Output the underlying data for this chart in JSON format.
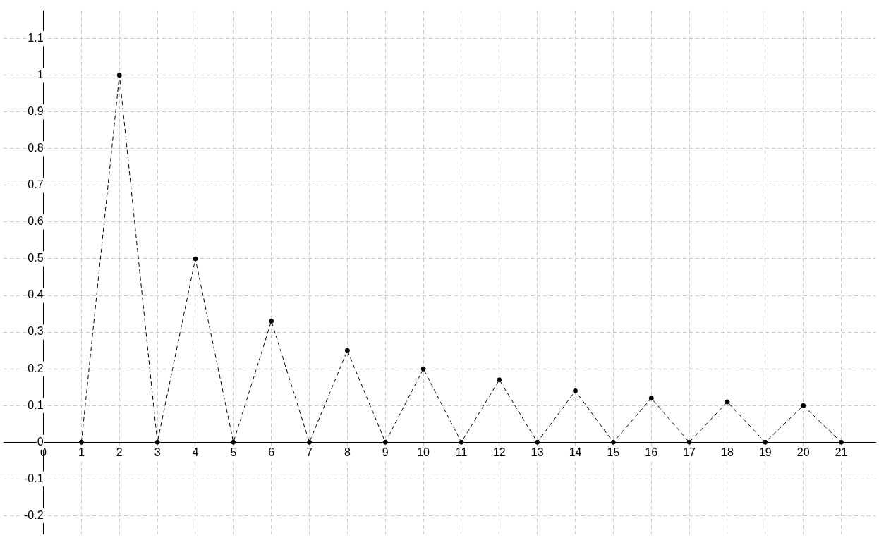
{
  "chart_data": {
    "type": "line",
    "x": [
      1,
      2,
      3,
      4,
      5,
      6,
      7,
      8,
      9,
      10,
      11,
      12,
      13,
      14,
      15,
      16,
      17,
      18,
      19,
      20,
      21
    ],
    "series": [
      {
        "color": "#000000",
        "values": [
          0,
          1,
          0,
          0.5,
          0,
          0.33,
          0,
          0.25,
          0,
          0.2,
          0,
          0.17,
          0,
          0.14,
          0,
          0.12,
          0,
          0.11,
          0,
          0.1,
          0
        ]
      }
    ],
    "xlim": [
      -1.05,
      21.9
    ],
    "ylim": [
      -0.25,
      1.175
    ],
    "xticks": [
      0,
      1,
      2,
      3,
      4,
      5,
      6,
      7,
      8,
      9,
      10,
      11,
      12,
      13,
      14,
      15,
      16,
      17,
      18,
      19,
      20,
      21
    ],
    "yticks": [
      -0.2,
      -0.1,
      0,
      0.1,
      0.2,
      0.3,
      0.4,
      0.5,
      0.6,
      0.7,
      0.8,
      0.9,
      1,
      1.1
    ],
    "grid": true,
    "legend": false,
    "marker": "circle",
    "line_style": "dashed"
  }
}
